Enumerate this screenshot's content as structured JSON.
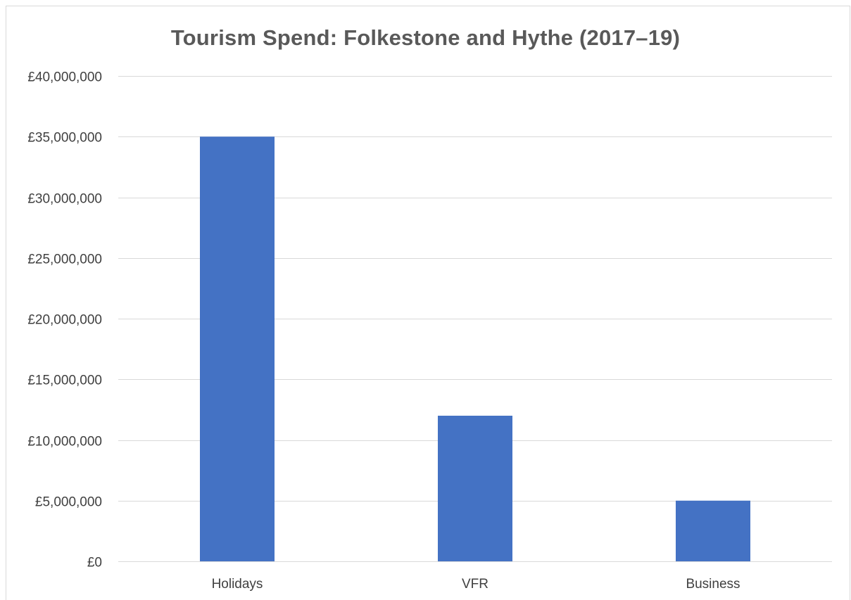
{
  "chart_data": {
    "type": "bar",
    "title": "Tourism Spend: Folkestone and Hythe (2017–19)",
    "categories": [
      "Holidays",
      "VFR",
      "Business"
    ],
    "values": [
      35000000,
      12000000,
      5000000
    ],
    "ylim": [
      0,
      40000000
    ],
    "y_ticks": [
      0,
      5000000,
      10000000,
      15000000,
      20000000,
      25000000,
      30000000,
      35000000,
      40000000
    ],
    "y_tick_labels": [
      "£0",
      "£5,000,000",
      "£10,000,000",
      "£15,000,000",
      "£20,000,000",
      "£25,000,000",
      "£30,000,000",
      "£35,000,000",
      "£40,000,000"
    ],
    "xlabel": "",
    "ylabel": "",
    "grid": true,
    "legend": "none",
    "bar_color": "#4472C4",
    "grid_color": "#d9d9d9"
  }
}
